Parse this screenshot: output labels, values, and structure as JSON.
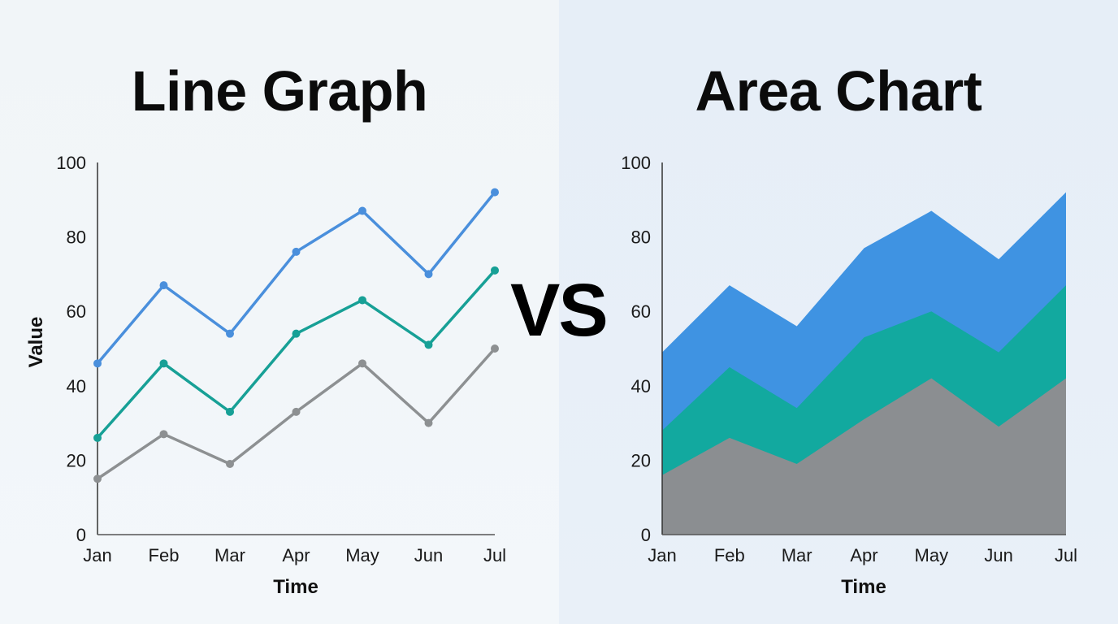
{
  "left": {
    "title": "Line Graph"
  },
  "right": {
    "title": "Area Chart"
  },
  "vs_label": "VS",
  "colors": {
    "blue": "#4a8fdc",
    "teal": "#17a096",
    "gray": "#8d9092",
    "area_blue": "#3f93e2",
    "area_teal": "#12a99f",
    "area_gray": "#8b8e91"
  },
  "chart_data": [
    {
      "type": "line",
      "title": "Line Graph",
      "xlabel": "Time",
      "ylabel": "Value",
      "categories": [
        "Jan",
        "Feb",
        "Mar",
        "Apr",
        "May",
        "Jun",
        "Jul"
      ],
      "ylim": [
        0,
        100
      ],
      "yticks": [
        0,
        20,
        40,
        60,
        80,
        100
      ],
      "grid": false,
      "legend": null,
      "series": [
        {
          "name": "Blue",
          "color": "#4a8fdc",
          "values": [
            46,
            67,
            54,
            76,
            87,
            70,
            92
          ]
        },
        {
          "name": "Teal",
          "color": "#17a096",
          "values": [
            26,
            46,
            33,
            54,
            63,
            51,
            71
          ]
        },
        {
          "name": "Gray",
          "color": "#8d9092",
          "values": [
            15,
            27,
            19,
            33,
            46,
            30,
            50
          ]
        }
      ]
    },
    {
      "type": "area",
      "title": "Area Chart",
      "xlabel": "Time",
      "ylabel": "",
      "categories": [
        "Jan",
        "Feb",
        "Mar",
        "Apr",
        "May",
        "Jun",
        "Jul"
      ],
      "ylim": [
        0,
        100
      ],
      "yticks": [
        0,
        20,
        40,
        60,
        80,
        100
      ],
      "grid": false,
      "legend": null,
      "series": [
        {
          "name": "Blue",
          "color": "#3f93e2",
          "values": [
            49,
            67,
            56,
            77,
            87,
            74,
            92
          ]
        },
        {
          "name": "Teal",
          "color": "#12a99f",
          "values": [
            28,
            45,
            34,
            53,
            60,
            49,
            67
          ]
        },
        {
          "name": "Gray",
          "color": "#8b8e91",
          "values": [
            16,
            26,
            19,
            31,
            42,
            29,
            42
          ]
        }
      ]
    }
  ]
}
